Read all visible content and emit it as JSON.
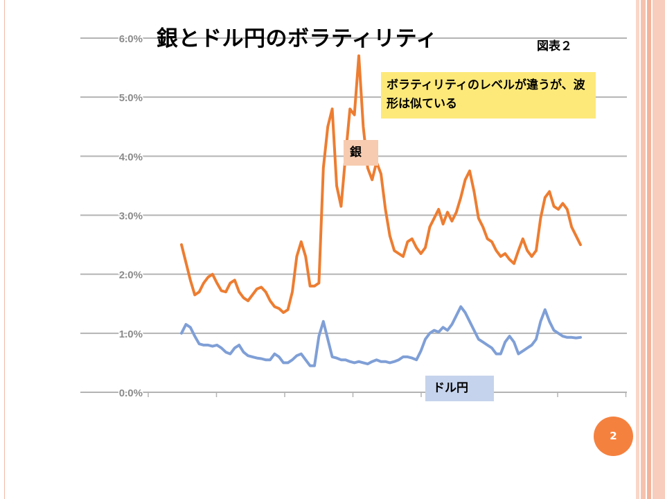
{
  "slide": {
    "title": "銀とドル円のボラティリティ",
    "figure_label": "図表２",
    "note": "ボラティリティのレベルが違うが、波形は似ている",
    "page_number": "2"
  },
  "colors": {
    "silver": "#ed7d31",
    "usdjpy": "#7f9fd6",
    "gridline": "#b3b3b3",
    "note_bg": "#fde97a",
    "silver_label_bg": "#f6cbb0",
    "usdjpy_label_bg": "#c6d3ec",
    "badge": "#f5813f"
  },
  "chart_data": {
    "type": "line",
    "title": "",
    "xlabel": "",
    "ylabel": "",
    "ylim": [
      0,
      6
    ],
    "y_ticks": [
      "0.0%",
      "1.0%",
      "2.0%",
      "3.0%",
      "4.0%",
      "5.0%",
      "6.0%"
    ],
    "grid": true,
    "legend": "none",
    "series": [
      {
        "name": "銀",
        "color": "#ed7d31",
        "values": [
          2.5,
          2.2,
          1.9,
          1.65,
          1.7,
          1.85,
          1.95,
          2.0,
          1.85,
          1.72,
          1.7,
          1.85,
          1.9,
          1.7,
          1.6,
          1.55,
          1.65,
          1.75,
          1.78,
          1.7,
          1.55,
          1.45,
          1.42,
          1.35,
          1.4,
          1.7,
          2.3,
          2.55,
          2.3,
          1.8,
          1.8,
          1.85,
          3.8,
          4.5,
          4.8,
          3.5,
          3.15,
          4.0,
          4.8,
          4.7,
          5.7,
          4.5,
          3.8,
          3.6,
          3.9,
          3.7,
          3.1,
          2.65,
          2.4,
          2.35,
          2.3,
          2.55,
          2.6,
          2.45,
          2.35,
          2.45,
          2.8,
          2.95,
          3.1,
          2.85,
          3.05,
          2.9,
          3.05,
          3.3,
          3.6,
          3.75,
          3.4,
          2.95,
          2.8,
          2.6,
          2.55,
          2.4,
          2.3,
          2.35,
          2.25,
          2.18,
          2.4,
          2.6,
          2.4,
          2.3,
          2.4,
          2.95,
          3.3,
          3.4,
          3.15,
          3.1,
          3.2,
          3.1,
          2.8,
          2.65,
          2.5
        ]
      },
      {
        "name": "ドル円",
        "color": "#7f9fd6",
        "values": [
          1.0,
          1.15,
          1.1,
          0.95,
          0.82,
          0.8,
          0.8,
          0.78,
          0.8,
          0.75,
          0.68,
          0.65,
          0.75,
          0.8,
          0.68,
          0.62,
          0.6,
          0.58,
          0.57,
          0.55,
          0.55,
          0.65,
          0.6,
          0.5,
          0.5,
          0.55,
          0.62,
          0.65,
          0.55,
          0.45,
          0.45,
          0.95,
          1.2,
          0.9,
          0.6,
          0.58,
          0.55,
          0.55,
          0.52,
          0.5,
          0.52,
          0.5,
          0.48,
          0.52,
          0.55,
          0.52,
          0.52,
          0.5,
          0.52,
          0.55,
          0.6,
          0.6,
          0.58,
          0.55,
          0.7,
          0.9,
          1.0,
          1.05,
          1.02,
          1.1,
          1.05,
          1.15,
          1.3,
          1.45,
          1.35,
          1.2,
          1.05,
          0.9,
          0.85,
          0.8,
          0.75,
          0.65,
          0.65,
          0.85,
          0.95,
          0.85,
          0.65,
          0.7,
          0.75,
          0.8,
          0.9,
          1.2,
          1.4,
          1.2,
          1.05,
          1.0,
          0.95,
          0.93,
          0.93,
          0.92,
          0.93
        ]
      }
    ]
  }
}
